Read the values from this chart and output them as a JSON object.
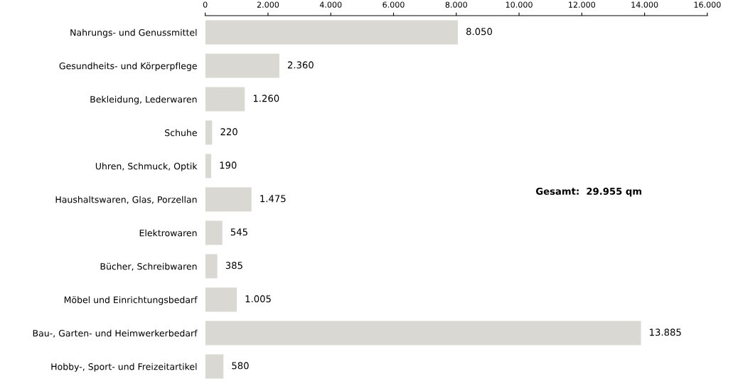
{
  "chart_data": {
    "type": "bar",
    "orientation": "horizontal",
    "categories": [
      "Nahrungs- und Genussmittel",
      "Gesundheits- und Körperpflege",
      "Bekleidung, Lederwaren",
      "Schuhe",
      "Uhren, Schmuck, Optik",
      "Haushaltswaren, Glas, Porzellan",
      "Elektrowaren",
      "Bücher, Schreibwaren",
      "Möbel und Einrichtungsbedarf",
      "Bau-, Garten- und Heimwerkerbedarf",
      "Hobby-, Sport- und Freizeitartikel"
    ],
    "values": [
      8050,
      2360,
      1260,
      220,
      190,
      1475,
      545,
      385,
      1005,
      13885,
      580
    ],
    "value_labels": [
      "8.050",
      "2.360",
      "1.260",
      "220",
      "190",
      "1.475",
      "545",
      "385",
      "1.005",
      "13.885",
      "580"
    ],
    "color": "#d9d8d2",
    "xlim": [
      0,
      16000
    ],
    "xticks": [
      0,
      {
        "value": 2000,
        "label": "2.000"
      },
      {
        "value": 4000,
        "label": "4.000"
      },
      {
        "value": 6000,
        "label": "6.000"
      },
      {
        "value": 8000,
        "label": "8.000"
      },
      {
        "value": 10000,
        "label": "10.000"
      },
      {
        "value": 12000,
        "label": "12.000"
      },
      {
        "value": 14000,
        "label": "14.000"
      },
      {
        "value": 16000,
        "label": "16.000"
      }
    ],
    "annotations": [
      "Gesamt:  29.955 qm"
    ],
    "grid": false
  }
}
